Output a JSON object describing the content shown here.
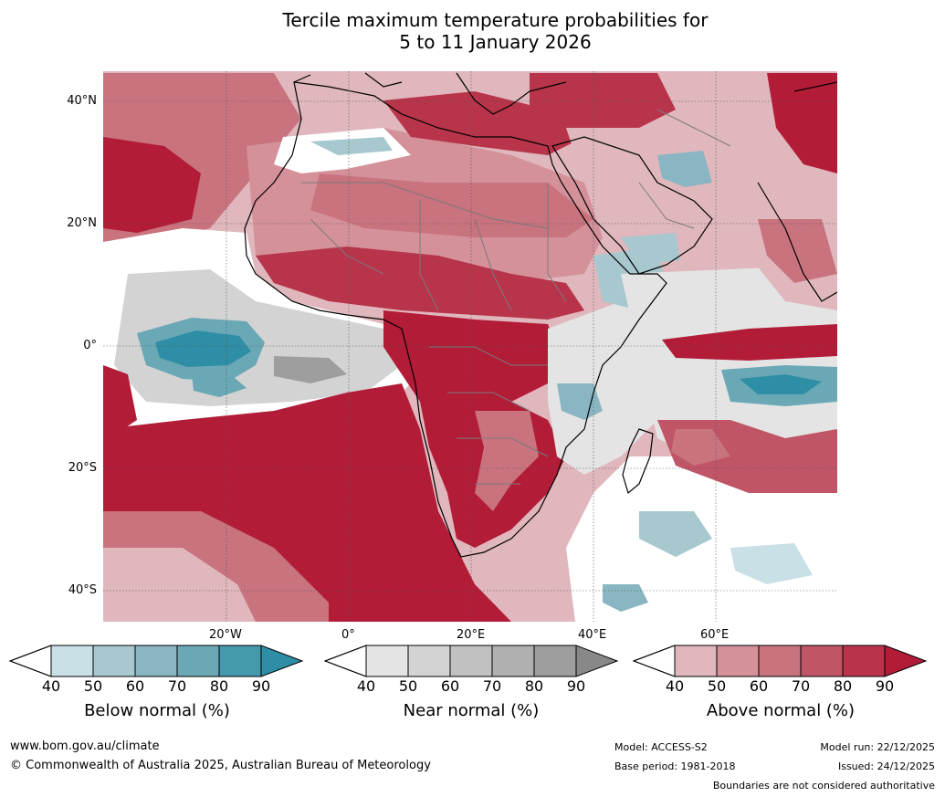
{
  "title": {
    "line1": "Tercile maximum temperature probabilities for",
    "line2": "5 to 11 January 2026"
  },
  "map": {
    "lat_labels": [
      "40°N",
      "20°N",
      "0°",
      "20°S",
      "40°S"
    ],
    "lon_labels": [
      "20°W",
      "0°",
      "20°E",
      "40°E",
      "60°E"
    ],
    "colors": {
      "above": [
        "#e0b7bc",
        "#d4919a",
        "#c9737e",
        "#bf5566",
        "#b8344b",
        "#b21c37"
      ],
      "below": [
        "#c9e0e6",
        "#a7c8cf",
        "#89b6c2",
        "#6aa8b6",
        "#4499ac",
        "#2e8ea5"
      ],
      "near": [
        "#e4e4e4",
        "#d3d3d3",
        "#c1c1c1",
        "#b0b0b0",
        "#9e9e9e",
        "#888888"
      ],
      "land_outline": "#000000",
      "borders": "#7a7a7a"
    }
  },
  "colorbars": [
    {
      "name": "below",
      "label": "Below normal (%)",
      "ticks": [
        "40",
        "50",
        "60",
        "70",
        "80",
        "90"
      ],
      "colors": [
        "#c9e0e6",
        "#a7c8cf",
        "#89b6c2",
        "#6aa8b6",
        "#4499ac",
        "#2e8ea5"
      ]
    },
    {
      "name": "near",
      "label": "Near normal (%)",
      "ticks": [
        "40",
        "50",
        "60",
        "70",
        "80",
        "90"
      ],
      "colors": [
        "#e4e4e4",
        "#d3d3d3",
        "#c1c1c1",
        "#b0b0b0",
        "#9e9e9e",
        "#888888"
      ]
    },
    {
      "name": "above",
      "label": "Above normal (%)",
      "ticks": [
        "40",
        "50",
        "60",
        "70",
        "80",
        "90"
      ],
      "colors": [
        "#e0b7bc",
        "#d4919a",
        "#c9737e",
        "#bf5566",
        "#b8344b",
        "#b21c37"
      ]
    }
  ],
  "footer": {
    "website": "www.bom.gov.au/climate",
    "copyright": "© Commonwealth of Australia 2025, Australian Bureau of Meteorology",
    "model": "Model: ACCESS-S2",
    "base_period": "Base period: 1981-2018",
    "model_run": "Model run: 22/12/2025",
    "issued": "Issued: 24/12/2025",
    "disclaimer": "Boundaries are not considered authoritative"
  }
}
